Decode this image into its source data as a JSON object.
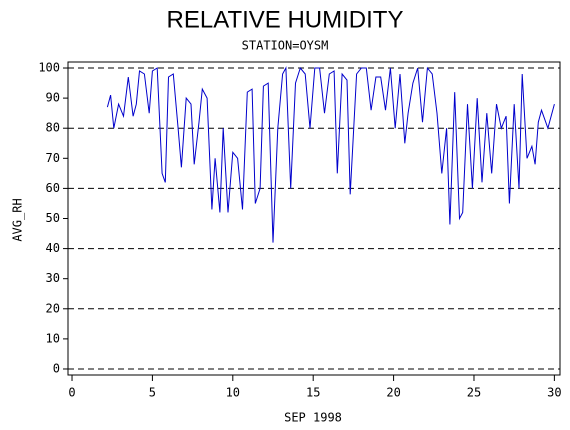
{
  "chart_data": {
    "type": "line",
    "title": "RELATIVE HUMIDITY",
    "subtitle": "STATION=OYSM",
    "x_label": "SEP 1998",
    "y_label": "AVG_RH",
    "xlim": [
      -0.25,
      30.35
    ],
    "ylim": [
      -2,
      102
    ],
    "xticks": [
      0,
      5,
      10,
      15,
      20,
      25,
      30
    ],
    "yticks": [
      0,
      10,
      20,
      30,
      40,
      50,
      60,
      70,
      80,
      90,
      100
    ],
    "grid_lines": [
      0,
      20,
      40,
      60,
      80,
      100
    ],
    "series": [
      {
        "color": "#0000cc",
        "x": [
          2.2,
          2.4,
          2.6,
          2.9,
          3.2,
          3.5,
          3.8,
          4.0,
          4.2,
          4.5,
          4.8,
          5.0,
          5.3,
          5.6,
          5.8,
          6.0,
          6.3,
          6.6,
          6.8,
          7.1,
          7.4,
          7.6,
          7.9,
          8.1,
          8.4,
          8.7,
          8.9,
          9.2,
          9.4,
          9.7,
          10.0,
          10.3,
          10.6,
          10.9,
          11.2,
          11.4,
          11.7,
          11.9,
          12.2,
          12.5,
          12.8,
          13.1,
          13.3,
          13.6,
          13.9,
          14.2,
          14.5,
          14.8,
          15.1,
          15.4,
          15.7,
          16.0,
          16.3,
          16.5,
          16.8,
          17.1,
          17.3,
          17.7,
          18.0,
          18.3,
          18.6,
          18.9,
          19.2,
          19.5,
          19.8,
          20.1,
          20.4,
          20.7,
          20.9,
          21.2,
          21.5,
          21.8,
          22.1,
          22.4,
          22.7,
          23.0,
          23.3,
          23.5,
          23.8,
          24.1,
          24.3,
          24.6,
          24.9,
          25.2,
          25.5,
          25.8,
          26.1,
          26.4,
          26.7,
          27.0,
          27.2,
          27.5,
          27.8,
          28.0,
          28.3,
          28.6,
          28.8,
          29.0,
          29.2,
          29.6,
          30.0
        ],
        "values": [
          87,
          91,
          80,
          88,
          84,
          97,
          84,
          88,
          99,
          98,
          85,
          99,
          100,
          65,
          62,
          97,
          98,
          80,
          67,
          90,
          88,
          68,
          82,
          93,
          90,
          53,
          70,
          52,
          80,
          52,
          72,
          70,
          53,
          92,
          93,
          55,
          60,
          94,
          95,
          42,
          80,
          98,
          100,
          60,
          95,
          100,
          98,
          80,
          100,
          100,
          85,
          98,
          99,
          65,
          98,
          96,
          58,
          98,
          100,
          100,
          86,
          97,
          97,
          86,
          100,
          80,
          98,
          75,
          85,
          95,
          100,
          82,
          100,
          98,
          85,
          65,
          80,
          48,
          92,
          50,
          52,
          88,
          60,
          90,
          62,
          85,
          65,
          88,
          80,
          84,
          55,
          88,
          60,
          98,
          70,
          74,
          68,
          82,
          86,
          80,
          88
        ]
      }
    ]
  }
}
